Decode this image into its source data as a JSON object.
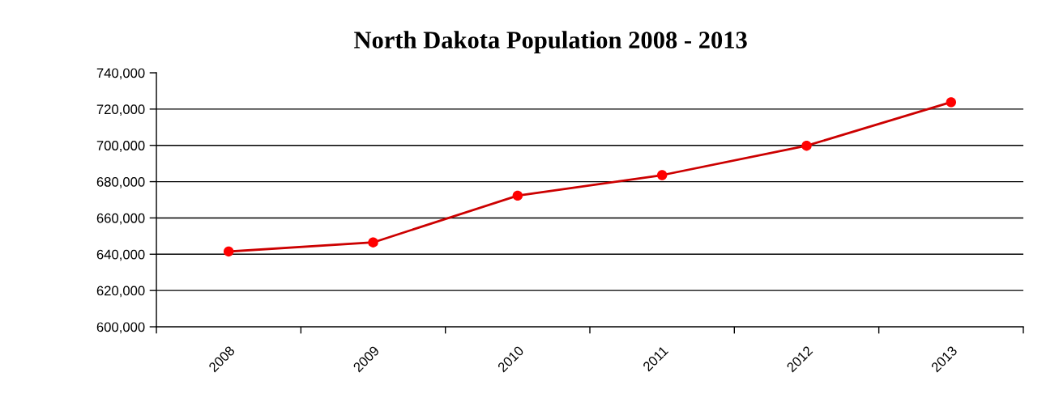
{
  "chart_data": {
    "type": "line",
    "title": "North Dakota Population 2008 - 2013",
    "categories": [
      "2008",
      "2009",
      "2010",
      "2011",
      "2012",
      "2013"
    ],
    "series": [
      {
        "color": "#cc0000",
        "colors": [
          "#ff0000",
          "#ff0000",
          "#ff0000",
          "#ff0000",
          "#ff0000",
          "#ff0000"
        ],
        "values": [
          641500,
          646500,
          672300,
          683600,
          699800,
          723800
        ]
      }
    ],
    "ylim": [
      600000,
      740000
    ],
    "yticks": [
      {
        "value": 600000,
        "label": "600,000"
      },
      {
        "value": 620000,
        "label": "620,000"
      },
      {
        "value": 640000,
        "label": "640,000"
      },
      {
        "value": 660000,
        "label": "660,000"
      },
      {
        "value": 680000,
        "label": "680,000"
      },
      {
        "value": 700000,
        "label": "700,000"
      },
      {
        "value": 720000,
        "label": "720,000"
      },
      {
        "value": 740000,
        "label": "740,000"
      }
    ],
    "grid": "y",
    "marker": "circle",
    "line_style": "solid"
  }
}
